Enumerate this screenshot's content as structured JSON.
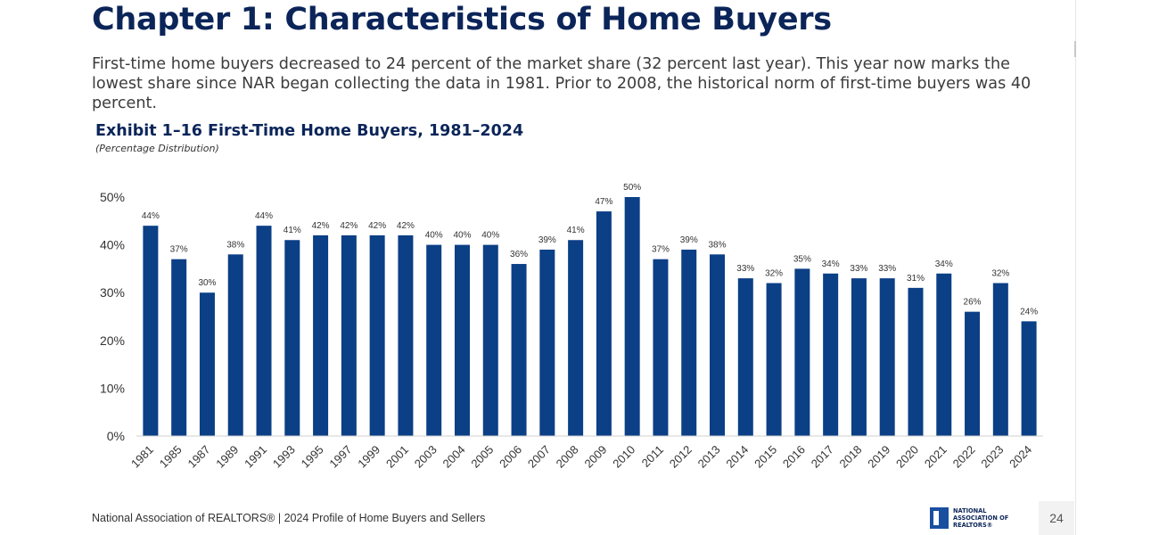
{
  "header": {
    "title": "Chapter 1: Characteristics of Home Buyers",
    "intro": "First-time home buyers decreased to 24 percent of the market share (32 percent last year). This year now marks the lowest share since NAR began collecting the data in 1981. Prior to 2008, the historical norm of first-time buyers was 40 percent."
  },
  "chart_data": {
    "type": "bar",
    "title": "Exhibit 1–16 First-Time Home Buyers, 1981–2024",
    "subtitle": "(Percentage  Distribution)",
    "categories": [
      "1981",
      "1985",
      "1987",
      "1989",
      "1991",
      "1993",
      "1995",
      "1997",
      "1999",
      "2001",
      "2003",
      "2004",
      "2005",
      "2006",
      "2007",
      "2008",
      "2009",
      "2010",
      "2011",
      "2012",
      "2013",
      "2014",
      "2015",
      "2016",
      "2017",
      "2018",
      "2019",
      "2020",
      "2021",
      "2022",
      "2023",
      "2024"
    ],
    "values": [
      44,
      37,
      30,
      38,
      44,
      41,
      42,
      42,
      42,
      42,
      40,
      40,
      40,
      36,
      39,
      41,
      47,
      50,
      37,
      39,
      38,
      33,
      32,
      35,
      34,
      33,
      33,
      31,
      34,
      26,
      32,
      24
    ],
    "data_labels": [
      "44%",
      "37%",
      "30%",
      "38%",
      "44%",
      "41%",
      "42%",
      "42%",
      "42%",
      "42%",
      "40%",
      "40%",
      "40%",
      "36%",
      "39%",
      "41%",
      "47%",
      "50%",
      "37%",
      "39%",
      "38%",
      "33%",
      "32%",
      "35%",
      "34%",
      "33%",
      "33%",
      "31%",
      "34%",
      "26%",
      "32%",
      "24%"
    ],
    "y_ticks": [
      "0%",
      "10%",
      "20%",
      "30%",
      "40%",
      "50%"
    ],
    "ylim": [
      0,
      50
    ],
    "xlabel": "",
    "ylabel": "",
    "grid": false,
    "bar_color": "#0b3f86"
  },
  "footer": {
    "source": "National Association of REALTORS® | 2024 Profile of Home Buyers and Sellers",
    "logo_text": "NATIONAL ASSOCIATION OF REALTORS®",
    "page_number": "24"
  }
}
